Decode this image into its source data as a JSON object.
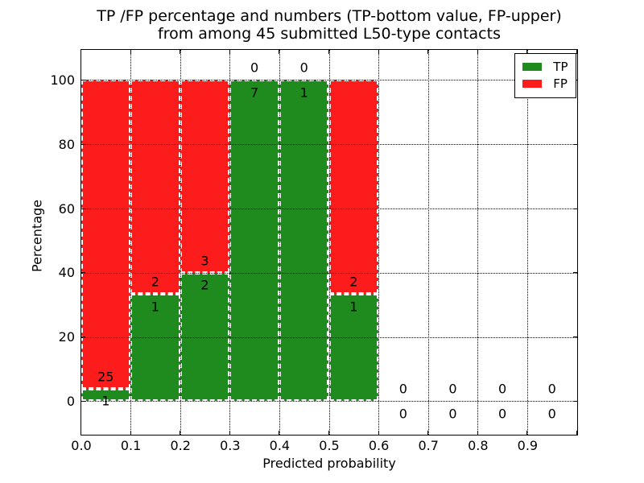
{
  "chart_data": {
    "type": "bar",
    "stacked": true,
    "title_line1": "TP /FP percentage and numbers (TP-bottom value, FP-upper)",
    "title_line2": "from among 45 submitted L50-type contacts",
    "xlabel": "Predicted probability",
    "ylabel": "Percentage",
    "xlim": [
      0.0,
      1.0
    ],
    "ylim": [
      -10.3,
      109.5
    ],
    "grid": {
      "style": "dotted",
      "color": "#000000",
      "axes": "both"
    },
    "x_ticks": [
      {
        "value": 0.0,
        "label": "0.0"
      },
      {
        "value": 0.1,
        "label": "0.1"
      },
      {
        "value": 0.2,
        "label": "0.2"
      },
      {
        "value": 0.3,
        "label": "0.3"
      },
      {
        "value": 0.4,
        "label": "0.4"
      },
      {
        "value": 0.5,
        "label": "0.5"
      },
      {
        "value": 0.6,
        "label": "0.6"
      },
      {
        "value": 0.7,
        "label": "0.7"
      },
      {
        "value": 0.8,
        "label": "0.8"
      },
      {
        "value": 0.9,
        "label": "0.9"
      },
      {
        "value": 1.0,
        "label": ""
      }
    ],
    "y_ticks": [
      {
        "value": 0,
        "label": "0"
      },
      {
        "value": 20,
        "label": "20"
      },
      {
        "value": 40,
        "label": "40"
      },
      {
        "value": 60,
        "label": "60"
      },
      {
        "value": 80,
        "label": "80"
      },
      {
        "value": 100,
        "label": "100"
      }
    ],
    "series_colors": {
      "tp": "#1f8b1f",
      "fp": "#fc1c1c"
    },
    "bar_edge": {
      "style": "dashed",
      "color": "#ffffff",
      "width": 2
    },
    "legend": {
      "position": "upper right",
      "entries": [
        {
          "name": "TP",
          "color_key": "tp"
        },
        {
          "name": "FP",
          "color_key": "fp"
        }
      ]
    },
    "annotation_offset_pct": 3.8,
    "bins": [
      {
        "x0": 0.0,
        "x1": 0.1,
        "tp_count": 1,
        "fp_count": 25,
        "tp_pct": 3.85,
        "fp_pct": 96.15
      },
      {
        "x0": 0.1,
        "x1": 0.2,
        "tp_count": 1,
        "fp_count": 2,
        "tp_pct": 33.33,
        "fp_pct": 66.67
      },
      {
        "x0": 0.2,
        "x1": 0.3,
        "tp_count": 2,
        "fp_count": 3,
        "tp_pct": 40.0,
        "fp_pct": 60.0
      },
      {
        "x0": 0.3,
        "x1": 0.4,
        "tp_count": 7,
        "fp_count": 0,
        "tp_pct": 100.0,
        "fp_pct": 0.0
      },
      {
        "x0": 0.4,
        "x1": 0.5,
        "tp_count": 1,
        "fp_count": 0,
        "tp_pct": 100.0,
        "fp_pct": 0.0
      },
      {
        "x0": 0.5,
        "x1": 0.6,
        "tp_count": 1,
        "fp_count": 2,
        "tp_pct": 33.33,
        "fp_pct": 66.67
      },
      {
        "x0": 0.6,
        "x1": 0.7,
        "tp_count": 0,
        "fp_count": 0,
        "tp_pct": 0.0,
        "fp_pct": 0.0
      },
      {
        "x0": 0.7,
        "x1": 0.8,
        "tp_count": 0,
        "fp_count": 0,
        "tp_pct": 0.0,
        "fp_pct": 0.0
      },
      {
        "x0": 0.8,
        "x1": 0.9,
        "tp_count": 0,
        "fp_count": 0,
        "tp_pct": 0.0,
        "fp_pct": 0.0
      },
      {
        "x0": 0.9,
        "x1": 1.0,
        "tp_count": 0,
        "fp_count": 0,
        "tp_pct": 0.0,
        "fp_pct": 0.0
      }
    ]
  }
}
